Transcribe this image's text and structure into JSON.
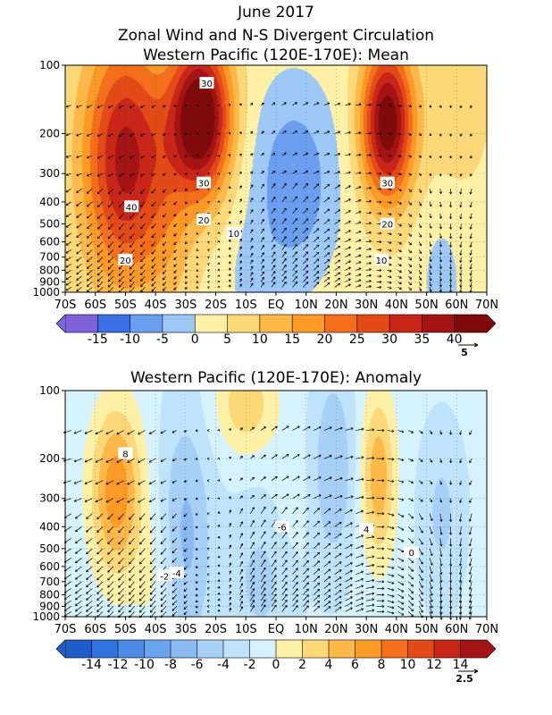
{
  "figure": {
    "title_line1": "June 2017",
    "title_line2": "Zonal Wind and N-S Divergent Circulation"
  },
  "chart_data": [
    {
      "type": "heatmap",
      "title": "Western Pacific (120E-170E): Mean",
      "x_tick_labels": [
        "70S",
        "60S",
        "50S",
        "40S",
        "30S",
        "20S",
        "10S",
        "EQ",
        "10N",
        "20N",
        "30N",
        "40N",
        "50N",
        "60N",
        "70N"
      ],
      "y_tick_labels": [
        "100",
        "200",
        "300",
        "400",
        "500",
        "600",
        "700",
        "800",
        "900",
        "1000"
      ],
      "y_scale": "log (pressure, hPa)",
      "colorbar_levels": [
        -20,
        -15,
        -10,
        -5,
        0,
        5,
        10,
        15,
        20,
        25,
        30,
        35,
        40,
        45
      ],
      "colorbar_tick_labels": [
        "-15",
        "-10",
        "-5",
        "0",
        "5",
        "10",
        "15",
        "20",
        "25",
        "30",
        "35",
        "40"
      ],
      "colorbar_colors": [
        "#7d62d8",
        "#3c6ee6",
        "#6c9ef0",
        "#9ec8f6",
        "#fff0a8",
        "#fdd878",
        "#fdb84a",
        "#fb9a26",
        "#f36f1c",
        "#e24a18",
        "#c9261a",
        "#a41414",
        "#7e0a0a"
      ],
      "vector_reference_label": "5",
      "contour_labels": [
        "30",
        "40",
        "30",
        "20",
        "20",
        "10",
        "30",
        "20",
        "10"
      ],
      "features": [
        {
          "name": "SH jet core",
          "lat": -48,
          "pressure": 250,
          "max_value": 33
        },
        {
          "name": "Subtropical westerly core",
          "lat": -25,
          "pressure": 170,
          "max_value": 45
        },
        {
          "name": "NH jet core",
          "lat": 37,
          "pressure": 180,
          "max_value": 40
        },
        {
          "name": "Tropical easterlies",
          "lat": 7,
          "pressure": 320,
          "min_value": -12
        }
      ]
    },
    {
      "type": "heatmap",
      "title": "Western Pacific (120E-170E): Anomaly",
      "x_tick_labels": [
        "70S",
        "60S",
        "50S",
        "40S",
        "30S",
        "20S",
        "10S",
        "EQ",
        "10N",
        "20N",
        "30N",
        "40N",
        "50N",
        "60N",
        "70N"
      ],
      "y_tick_labels": [
        "100",
        "200",
        "300",
        "400",
        "500",
        "600",
        "700",
        "800",
        "900",
        "1000"
      ],
      "y_scale": "log (pressure, hPa)",
      "colorbar_levels": [
        -16,
        -14,
        -12,
        -10,
        -8,
        -6,
        -4,
        -2,
        0,
        2,
        4,
        6,
        8,
        10,
        12,
        14,
        16
      ],
      "colorbar_tick_labels": [
        "-14",
        "-12",
        "-10",
        "-8",
        "-6",
        "-4",
        "-2",
        "0",
        "2",
        "4",
        "6",
        "8",
        "10",
        "12",
        "14"
      ],
      "colorbar_colors": [
        "#1e5cc8",
        "#2e74dc",
        "#4a8ce6",
        "#6aa4ee",
        "#8cbaf3",
        "#a8d0f7",
        "#bfe3fa",
        "#d6f3fd",
        "#fff0a8",
        "#fdd878",
        "#fdb84a",
        "#fb9a26",
        "#f36f1c",
        "#e24a18",
        "#c9261a",
        "#a41414"
      ],
      "vector_reference_label": "2.5",
      "contour_labels": [
        "8",
        "-6",
        "-4",
        "-2",
        "4",
        "0"
      ],
      "features": [
        {
          "name": "SH positive anomaly",
          "lat": -52,
          "pressure": 300,
          "max_value": 9
        },
        {
          "name": "Upper tropical positive anomaly",
          "lat": -10,
          "pressure": 110,
          "max_value": 5
        },
        {
          "name": "NH positive anomaly",
          "lat": 34,
          "pressure": 250,
          "max_value": 7
        },
        {
          "name": "Negative anomaly 30S",
          "lat": -30,
          "pressure": 400,
          "min_value": -5
        },
        {
          "name": "Negative anomaly 20N",
          "lat": 20,
          "pressure": 200,
          "min_value": -5
        }
      ]
    }
  ]
}
